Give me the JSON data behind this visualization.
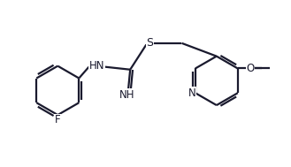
{
  "bg_color": "#ffffff",
  "line_color": "#1a1a2e",
  "line_width": 1.6,
  "font_size": 8.5,
  "fig_w": 3.29,
  "fig_h": 1.89,
  "dpi": 100,
  "xlim": [
    0,
    10
  ],
  "ylim": [
    0,
    6
  ]
}
